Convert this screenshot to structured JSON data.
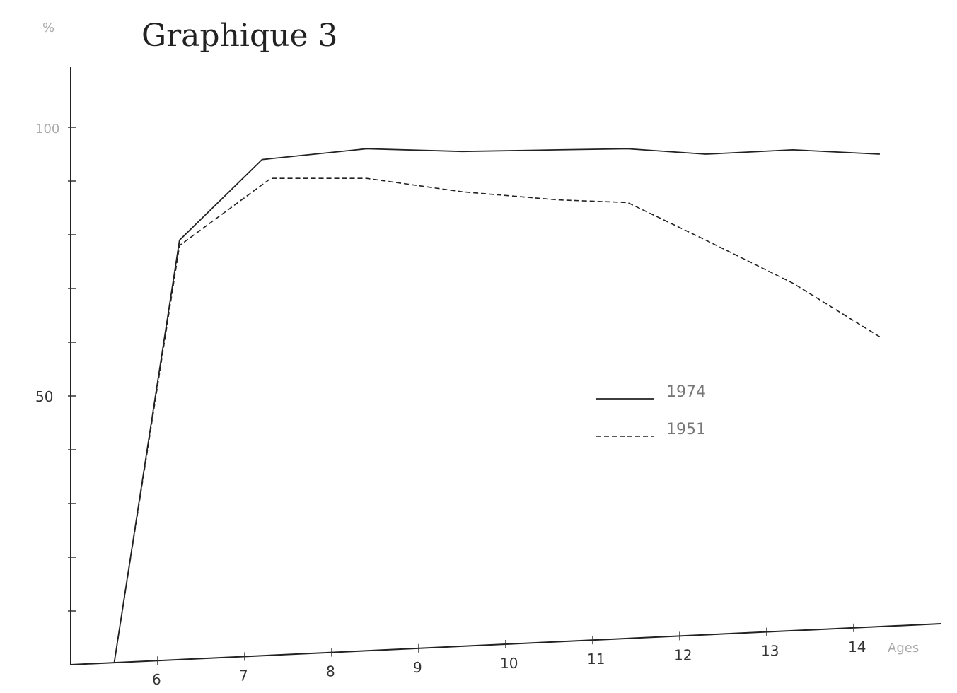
{
  "chart_data": {
    "type": "line",
    "title": "Graphique 3",
    "ylabel": "%",
    "xlabel": "Ages",
    "xlim": [
      5,
      15
    ],
    "ylim": [
      0,
      100
    ],
    "x_ticks": [
      "6",
      "7",
      "8",
      "9",
      "10",
      "11",
      "12",
      "13",
      "14"
    ],
    "y_ticks": [
      "50",
      "100"
    ],
    "legend_position": "center-right",
    "series": [
      {
        "name": "1974",
        "style": "solid",
        "x": [
          6.25,
          7.2,
          8.4,
          9.5,
          10.6,
          11.4,
          12.3,
          13.3,
          14.3
        ],
        "y": [
          79,
          94,
          96,
          95.5,
          95.8,
          96,
          95,
          95.8,
          95
        ]
      },
      {
        "name": "1951",
        "style": "dashed",
        "x": [
          6.25,
          7.3,
          8.4,
          9.5,
          10.6,
          11.4,
          12.3,
          13.3,
          14.3
        ],
        "y": [
          78,
          90.5,
          90.5,
          88,
          86.5,
          86,
          79,
          71,
          61
        ]
      }
    ]
  }
}
